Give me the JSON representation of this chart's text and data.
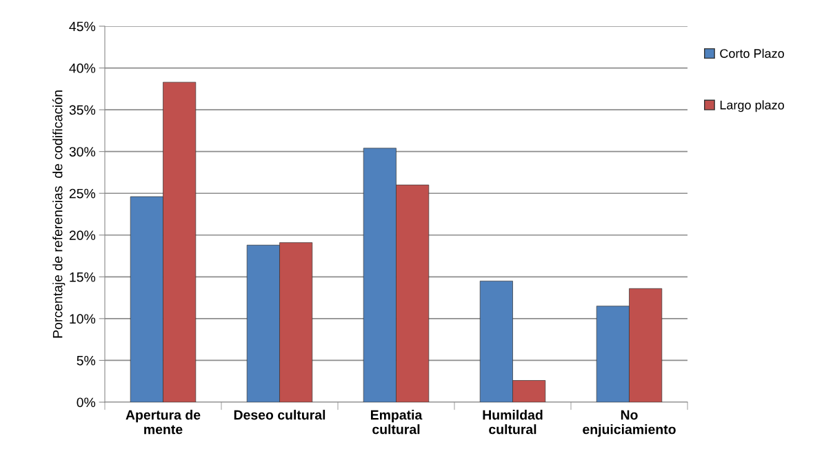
{
  "chart_data": {
    "type": "bar",
    "ylabel": "Porcentaje de referencias  de codificación",
    "categories": [
      "Apertura de\nmente",
      "Deseo cultural",
      "Empatia\ncultural",
      "Humildad\ncultural",
      "No\nenjuiciamiento"
    ],
    "series": [
      {
        "name": "Corto Plazo",
        "color": "#4f81bd",
        "values": [
          24.6,
          18.8,
          30.4,
          14.5,
          11.5
        ]
      },
      {
        "name": "Largo plazo",
        "color": "#c0504d",
        "values": [
          38.3,
          19.1,
          26.0,
          2.6,
          13.6
        ]
      }
    ],
    "ylim": [
      0,
      45
    ],
    "yticks": [
      {
        "value": 0,
        "label": "0%"
      },
      {
        "value": 5,
        "label": "5%"
      },
      {
        "value": 10,
        "label": "10%"
      },
      {
        "value": 15,
        "label": "15%"
      },
      {
        "value": 20,
        "label": "20%"
      },
      {
        "value": 25,
        "label": "25%"
      },
      {
        "value": 30,
        "label": "30%"
      },
      {
        "value": 35,
        "label": "35%"
      },
      {
        "value": 40,
        "label": "40%"
      },
      {
        "value": 45,
        "label": "45%"
      }
    ],
    "grid": "y",
    "legend": "top right"
  }
}
